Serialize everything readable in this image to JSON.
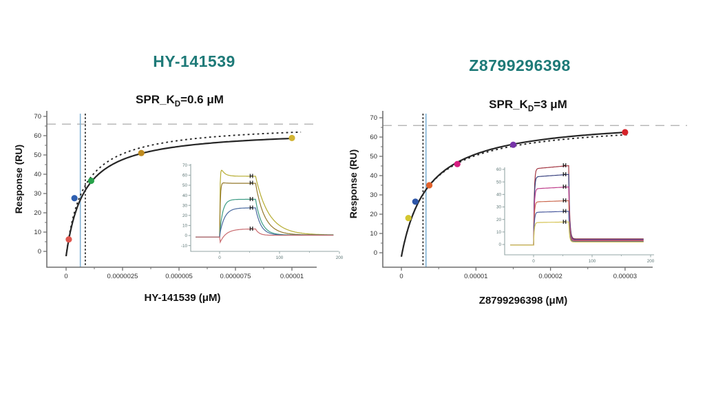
{
  "page": {
    "background": "#ffffff"
  },
  "chart_data": [
    {
      "type": "scatter",
      "title": "HY-141539",
      "title_color": "#1e7a78",
      "subtitle": {
        "prefix": "SPR_K",
        "sub": "D",
        "suffix": "=0.6 μM"
      },
      "kd_um": 0.6,
      "xlabel": "HY-141539 (μM)",
      "ylabel": "Response (RU)",
      "x_ticks": [
        {
          "v": 0,
          "label": "0"
        },
        {
          "v": 2.5,
          "label": "0.0000025"
        },
        {
          "v": 5,
          "label": "0.000005"
        },
        {
          "v": 7.5,
          "label": "0.0000075"
        },
        {
          "v": 10,
          "label": "0.00001"
        }
      ],
      "x_minor": [
        1.25,
        3.75,
        6.25,
        8.75
      ],
      "y_ticks": [
        0,
        10,
        20,
        30,
        40,
        50,
        60,
        70
      ],
      "y_minor": [
        5,
        15,
        25,
        35,
        45,
        55,
        65
      ],
      "rmax_line": 66,
      "vlines": [
        {
          "x": 0.63,
          "style": "solid",
          "color": "#7fb2d6"
        },
        {
          "x": 0.85,
          "style": "dashed",
          "color": "#1c1c1c"
        }
      ],
      "fit_curves": [
        {
          "style": "dotted",
          "rmax": 66.5,
          "kd": 0.75,
          "off": -2.5,
          "x_end": 10.4
        },
        {
          "style": "solid",
          "rmax": 63.4,
          "kd": 0.79,
          "off": -2.5,
          "x_end": 10.0
        }
      ],
      "points": [
        {
          "x": 0.12,
          "y": 6.2,
          "color": "#e0564e"
        },
        {
          "x": 0.37,
          "y": 27.6,
          "color": "#2e5fb0"
        },
        {
          "x": 1.11,
          "y": 36.6,
          "color": "#27a24a"
        },
        {
          "x": 3.33,
          "y": 51.0,
          "color": "#bf8b1e"
        },
        {
          "x": 10.0,
          "y": 58.8,
          "color": "#d2b433"
        }
      ],
      "inset": {
        "type": "line",
        "x_ticks": [
          {
            "v": 0,
            "label": "0"
          },
          {
            "v": 100,
            "label": "100"
          },
          {
            "v": 200,
            "label": "200"
          }
        ],
        "x_minor": [
          50,
          150
        ],
        "y_ticks": [
          -10,
          0,
          10,
          20,
          30,
          40,
          50,
          60,
          70
        ],
        "t_start": -40,
        "t_on": 0,
        "t_off": 60,
        "t_end": 190,
        "t_marker": 53,
        "baseline": -1.5,
        "marker_glyph": "H",
        "curves": [
          {
            "color": "#b5ab2f",
            "plateau": 59,
            "overshoot": 12,
            "tau_os": 6,
            "tau_on": 0.8,
            "tau_off": 22,
            "residual": 0.6
          },
          {
            "color": "#94782b",
            "plateau": 52,
            "overshoot": 3,
            "tau_os": 4,
            "tau_on": 1.2,
            "tau_off": 15,
            "residual": 0.6
          },
          {
            "color": "#3d9c84",
            "plateau": 36,
            "tau_on": 5,
            "tau_off": 10,
            "residual": 0.5
          },
          {
            "color": "#48699f",
            "plateau": 27.5,
            "tau_on": 8,
            "tau_off": 9,
            "residual": 0.4
          },
          {
            "color": "#c96a6e",
            "plateau": 6.6,
            "dip": -8,
            "tau_dip": 9,
            "tau_on": 12,
            "tau_off": 6,
            "residual": 0.2
          }
        ]
      }
    },
    {
      "type": "scatter",
      "title": "Z8799296398",
      "title_color": "#1e7a78",
      "subtitle": {
        "prefix": "SPR_K",
        "sub": "D",
        "suffix": "=3 μM"
      },
      "kd_um": 3,
      "xlabel": "Z8799296398 (μM)",
      "ylabel": "Response (RU)",
      "x_ticks": [
        {
          "v": 0,
          "label": "0"
        },
        {
          "v": 10,
          "label": "0.00001"
        },
        {
          "v": 20,
          "label": "0.00002"
        },
        {
          "v": 30,
          "label": "0.00003"
        }
      ],
      "x_minor": [
        5,
        15,
        25
      ],
      "y_ticks": [
        0,
        10,
        20,
        30,
        40,
        50,
        60,
        70
      ],
      "y_minor": [
        5,
        15,
        25,
        35,
        45,
        55,
        65
      ],
      "rmax_line": 66,
      "vlines": [
        {
          "x": 2.9,
          "style": "dashed",
          "color": "#1c1c1c"
        },
        {
          "x": 3.3,
          "style": "solid",
          "color": "#7fb2d6"
        }
      ],
      "fit_curves": [
        {
          "style": "dotted",
          "rmax": 68.3,
          "kd": 3.4,
          "off": -2,
          "x_end": 30.4
        },
        {
          "style": "solid",
          "rmax": 70.1,
          "kd": 3.56,
          "off": -2,
          "x_end": 30.0
        }
      ],
      "points": [
        {
          "x": 0.94,
          "y": 18.0,
          "color": "#d4c730"
        },
        {
          "x": 1.875,
          "y": 26.5,
          "color": "#2e56a8"
        },
        {
          "x": 3.75,
          "y": 35.0,
          "color": "#e2622c"
        },
        {
          "x": 7.5,
          "y": 46.0,
          "color": "#d61c80"
        },
        {
          "x": 15,
          "y": 56.0,
          "color": "#7633a8"
        },
        {
          "x": 30,
          "y": 62.5,
          "color": "#d6232a"
        }
      ],
      "inset": {
        "type": "line",
        "x_ticks": [
          {
            "v": 0,
            "label": "0"
          },
          {
            "v": 100,
            "label": "100"
          },
          {
            "v": 200,
            "label": "200"
          }
        ],
        "x_minor": [
          50,
          150
        ],
        "y_ticks": [
          0,
          10,
          20,
          30,
          40,
          50,
          60
        ],
        "t_start": -40,
        "t_on": 0,
        "t_off": 60,
        "t_end": 188,
        "t_marker": 53,
        "baseline": -0.5,
        "marker_glyph": "H",
        "curves": [
          {
            "color": "#a23440",
            "plateau": 63,
            "creep": 2.5,
            "tau_on": 1.2,
            "tau_off": 1.6,
            "residual": 4.5
          },
          {
            "color": "#3a4380",
            "plateau": 56,
            "creep": 2.0,
            "tau_on": 1.2,
            "tau_off": 1.6,
            "residual": 4.0
          },
          {
            "color": "#bf3f8c",
            "plateau": 46,
            "creep": 1.5,
            "tau_on": 1.2,
            "tau_off": 1.5,
            "residual": 3.5
          },
          {
            "color": "#cc6a50",
            "plateau": 35,
            "creep": 1.0,
            "tau_on": 1.2,
            "tau_off": 1.5,
            "residual": 3.0
          },
          {
            "color": "#4a5a9e",
            "plateau": 26.5,
            "creep": 0.8,
            "tau_on": 1.2,
            "tau_off": 1.4,
            "residual": 2.5
          },
          {
            "color": "#d5c455",
            "plateau": 18,
            "creep": 0.5,
            "tau_on": 1.2,
            "tau_off": 1.4,
            "residual": 2.0
          }
        ]
      }
    }
  ]
}
